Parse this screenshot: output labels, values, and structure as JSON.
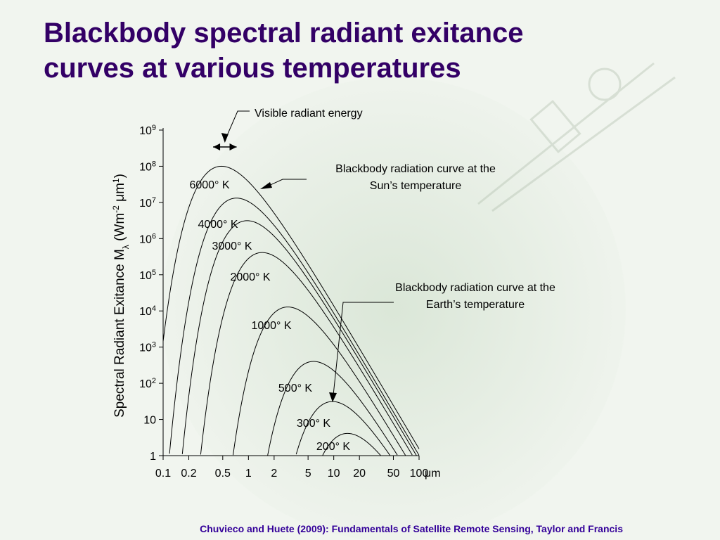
{
  "title": {
    "line1": "Blackbody spectral radiant exitance",
    "line2": "curves at various temperatures"
  },
  "footer": "Chuvieco and Huete (2009): Fundamentals of Satellite Remote Sensing, Taylor and Francis",
  "chart_data": {
    "type": "line",
    "x_scale": "log",
    "y_scale": "log",
    "xlim": [
      0.1,
      100
    ],
    "ylim": [
      1,
      1000000000
    ],
    "x_ticks": [
      0.1,
      0.2,
      0.5,
      1,
      2,
      5,
      10,
      20,
      50,
      100
    ],
    "x_tick_labels": [
      "0.1",
      "0.2",
      "0.5",
      "1",
      "2",
      "5",
      "10",
      "20",
      "50",
      "100"
    ],
    "x_unit": "μm",
    "y_ticks": [
      1,
      10,
      100,
      1000,
      10000,
      100000,
      1000000,
      10000000,
      100000000,
      1000000000
    ],
    "y_tick_labels": [
      {
        "base": "1",
        "exp": ""
      },
      {
        "base": "10",
        "exp": ""
      },
      {
        "base": "10",
        "exp": "2"
      },
      {
        "base": "10",
        "exp": "3"
      },
      {
        "base": "10",
        "exp": "4"
      },
      {
        "base": "10",
        "exp": "5"
      },
      {
        "base": "10",
        "exp": "6"
      },
      {
        "base": "10",
        "exp": "7"
      },
      {
        "base": "10",
        "exp": "8"
      },
      {
        "base": "10",
        "exp": "9"
      }
    ],
    "ylabel": {
      "part1": "Spectral Radiant Exitance M",
      "sub": "λ",
      "part2": " (Wm",
      "sup1": "-2",
      "part3": " μm",
      "sup2": "1",
      "part4": ")"
    },
    "series": [
      {
        "name": "6000° K",
        "temperature_K": 6000
      },
      {
        "name": "4000° K",
        "temperature_K": 4000
      },
      {
        "name": "3000° K",
        "temperature_K": 3000
      },
      {
        "name": "2000° K",
        "temperature_K": 2000
      },
      {
        "name": "1000° K",
        "temperature_K": 1000
      },
      {
        "name": "500° K",
        "temperature_K": 500
      },
      {
        "name": "300° K",
        "temperature_K": 300
      },
      {
        "name": "200° K",
        "temperature_K": 200
      }
    ],
    "visible_band_um": [
      0.4,
      0.7
    ],
    "annotations": [
      {
        "id": "visible",
        "text": "Visible radiant energy"
      },
      {
        "id": "sun",
        "lines": [
          "Blackbody radiation curve at the",
          "Sun’s temperature"
        ]
      },
      {
        "id": "earth",
        "lines": [
          "Blackbody radiation curve at the",
          "Earth’s temperature"
        ]
      }
    ],
    "grid": false,
    "legend": "none"
  }
}
